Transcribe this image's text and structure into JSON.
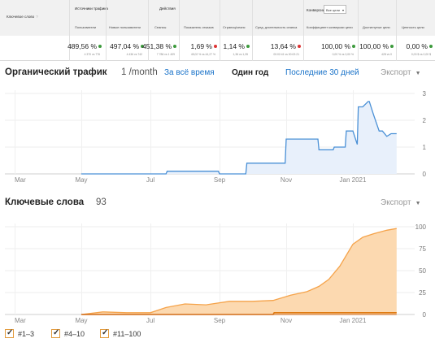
{
  "metrics": {
    "row_label": "Ключевое слово",
    "groups": {
      "sources": "Источники трафика",
      "actions": "Действия",
      "conversions": "Конверсии",
      "conversions_select": "Все цели"
    },
    "columns": [
      {
        "title": "Пользователи",
        "value": "489,56 %",
        "sub": "4 370 vs 776",
        "trend": "green"
      },
      {
        "title": "Новые пользователи",
        "value": "497,04 %",
        "sub": "4 436 vs 742",
        "trend": "green"
      },
      {
        "title": "Сеансы",
        "value": "451,38 %",
        "sub": "7 786 vs 1 409",
        "trend": "green"
      },
      {
        "title": "Показатель отказов",
        "value": "1,69 %",
        "sub": "45,02 % vs 44,27 %",
        "trend": "red"
      },
      {
        "title": "Страниц/сеанс",
        "value": "1,14 %",
        "sub": "1,36 vs 1,35",
        "trend": "green"
      },
      {
        "title": "Сред. длительность сеанса",
        "value": "13,64 %",
        "sub": "00:02:41 vs 00:02:21",
        "trend": "red"
      },
      {
        "title": "Коэффициент конверсии цели",
        "value": "100,00 %",
        "sub": "0,00 % vs 0,00 %",
        "trend": "green"
      },
      {
        "title": "Достигнутые цели",
        "value": "100,00 %",
        "sub": "428 vs 0",
        "trend": "green"
      },
      {
        "title": "Ценность цели",
        "value": "0,00 %",
        "sub": "0,00 $ vs 0,00 $",
        "trend": "green"
      }
    ]
  },
  "traffic": {
    "title": "Органический трафик",
    "count": "1 /month",
    "links": {
      "all_time": "За всё время",
      "one_year": "Один год",
      "last_30": "Последние 30 дней"
    },
    "export": "Экспорт"
  },
  "keywords": {
    "title": "Ключевые слова",
    "count": "93",
    "export": "Экспорт"
  },
  "legend": [
    "#1–3",
    "#4–10",
    "#11–100"
  ],
  "colors": {
    "traffic_line": "#4a90d6",
    "traffic_fill": "#e8f0fb",
    "kw_top100": "#f5a34a",
    "kw_top100_fill": "#fcd9b0",
    "kw_top10": "#e07a10",
    "kw_top3": "#c8651c"
  },
  "chart_data": [
    {
      "type": "line",
      "title": "Органический трафик",
      "x_ticks": [
        "Mar",
        "May",
        "Jul",
        "Sep",
        "Nov",
        "Jan 2021"
      ],
      "y_ticks": [
        0,
        1,
        2,
        3
      ],
      "ylim": [
        0,
        3
      ],
      "series": [
        {
          "x": [
            "2020-05-01",
            "2020-07-15",
            "2020-07-16",
            "2020-08-31",
            "2020-09-01",
            "2020-09-25",
            "2020-09-26",
            "2020-10-31",
            "2020-11-01",
            "2020-11-30",
            "2020-12-01",
            "2020-12-14",
            "2020-12-15",
            "2020-12-25",
            "2020-12-26",
            "2021-01-01",
            "2021-01-05",
            "2021-01-06",
            "2021-01-10",
            "2021-01-15",
            "2021-01-16",
            "2021-01-20",
            "2021-01-25",
            "2021-01-28",
            "2021-02-01",
            "2021-02-05",
            "2021-02-10"
          ],
          "y": [
            0,
            0,
            0.1,
            0.1,
            0,
            0,
            0.4,
            0.4,
            1.3,
            1.3,
            0.9,
            0.9,
            1.0,
            1.0,
            1.6,
            1.6,
            1.1,
            2.5,
            2.5,
            2.7,
            2.7,
            2.2,
            1.6,
            1.6,
            1.4,
            1.5,
            1.5
          ]
        }
      ]
    },
    {
      "type": "area",
      "title": "Ключевые слова",
      "x_ticks": [
        "Mar",
        "May",
        "Jul",
        "Sep",
        "Nov",
        "Jan 2021"
      ],
      "y_ticks": [
        0,
        25,
        50,
        75,
        100
      ],
      "ylim": [
        0,
        100
      ],
      "series": [
        {
          "name": "#11–100",
          "x": [
            "2020-05-01",
            "2020-05-20",
            "2020-06-10",
            "2020-07-01",
            "2020-07-15",
            "2020-08-01",
            "2020-08-20",
            "2020-09-10",
            "2020-10-01",
            "2020-10-20",
            "2020-11-05",
            "2020-11-20",
            "2020-12-01",
            "2020-12-10",
            "2020-12-20",
            "2021-01-01",
            "2021-01-10",
            "2021-01-20",
            "2021-02-01",
            "2021-02-10"
          ],
          "y": [
            0,
            3,
            2,
            2,
            8,
            12,
            11,
            15,
            15,
            16,
            22,
            26,
            32,
            40,
            55,
            80,
            88,
            92,
            96,
            98
          ]
        },
        {
          "name": "#4–10",
          "x": [
            "2020-05-01",
            "2020-10-20",
            "2020-10-21",
            "2021-02-10"
          ],
          "y": [
            0,
            0,
            2,
            2
          ]
        },
        {
          "name": "#1–3",
          "x": [
            "2020-05-01",
            "2021-02-10"
          ],
          "y": [
            0,
            0
          ]
        }
      ]
    }
  ]
}
